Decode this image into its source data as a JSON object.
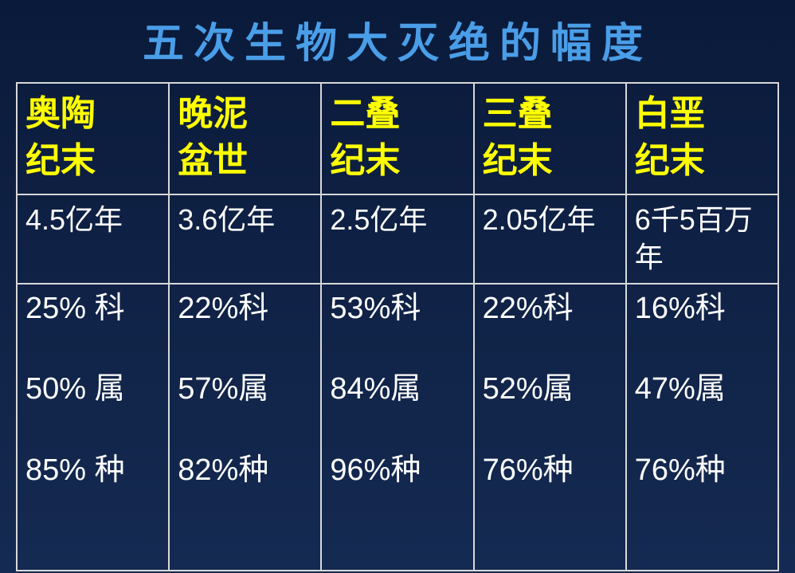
{
  "colors": {
    "title_color": "#4a9ee8",
    "header_color": "#ffff00",
    "text_color": "#ffffff",
    "border_color": "#d8d8d8",
    "bg_top": "#0a1a3a",
    "bg_bottom": "#152a52"
  },
  "title": "五次生物大灭绝的幅度",
  "table": {
    "columns": [
      {
        "header_l1": "奥陶",
        "header_l2": "纪末",
        "time": "4.5亿年",
        "family": "25% 科",
        "genus": "50% 属",
        "species": "85% 种"
      },
      {
        "header_l1": "晚泥",
        "header_l2": "盆世",
        "time": "3.6亿年",
        "family": "22%科",
        "genus": "57%属",
        "species": "82%种"
      },
      {
        "header_l1": "二叠",
        "header_l2": "纪末",
        "time": "2.5亿年",
        "family": "53%科",
        "genus": "84%属",
        "species": "96%种"
      },
      {
        "header_l1": "三叠",
        "header_l2": "纪末",
        "time": "2.05亿年",
        "family": "22%科",
        "genus": "52%属",
        "species": "76%种"
      },
      {
        "header_l1": "白垩",
        "header_l2": "纪末",
        "time": "6千5百万年",
        "family": "16%科",
        "genus": "47%属",
        "species": "76%种"
      }
    ]
  }
}
